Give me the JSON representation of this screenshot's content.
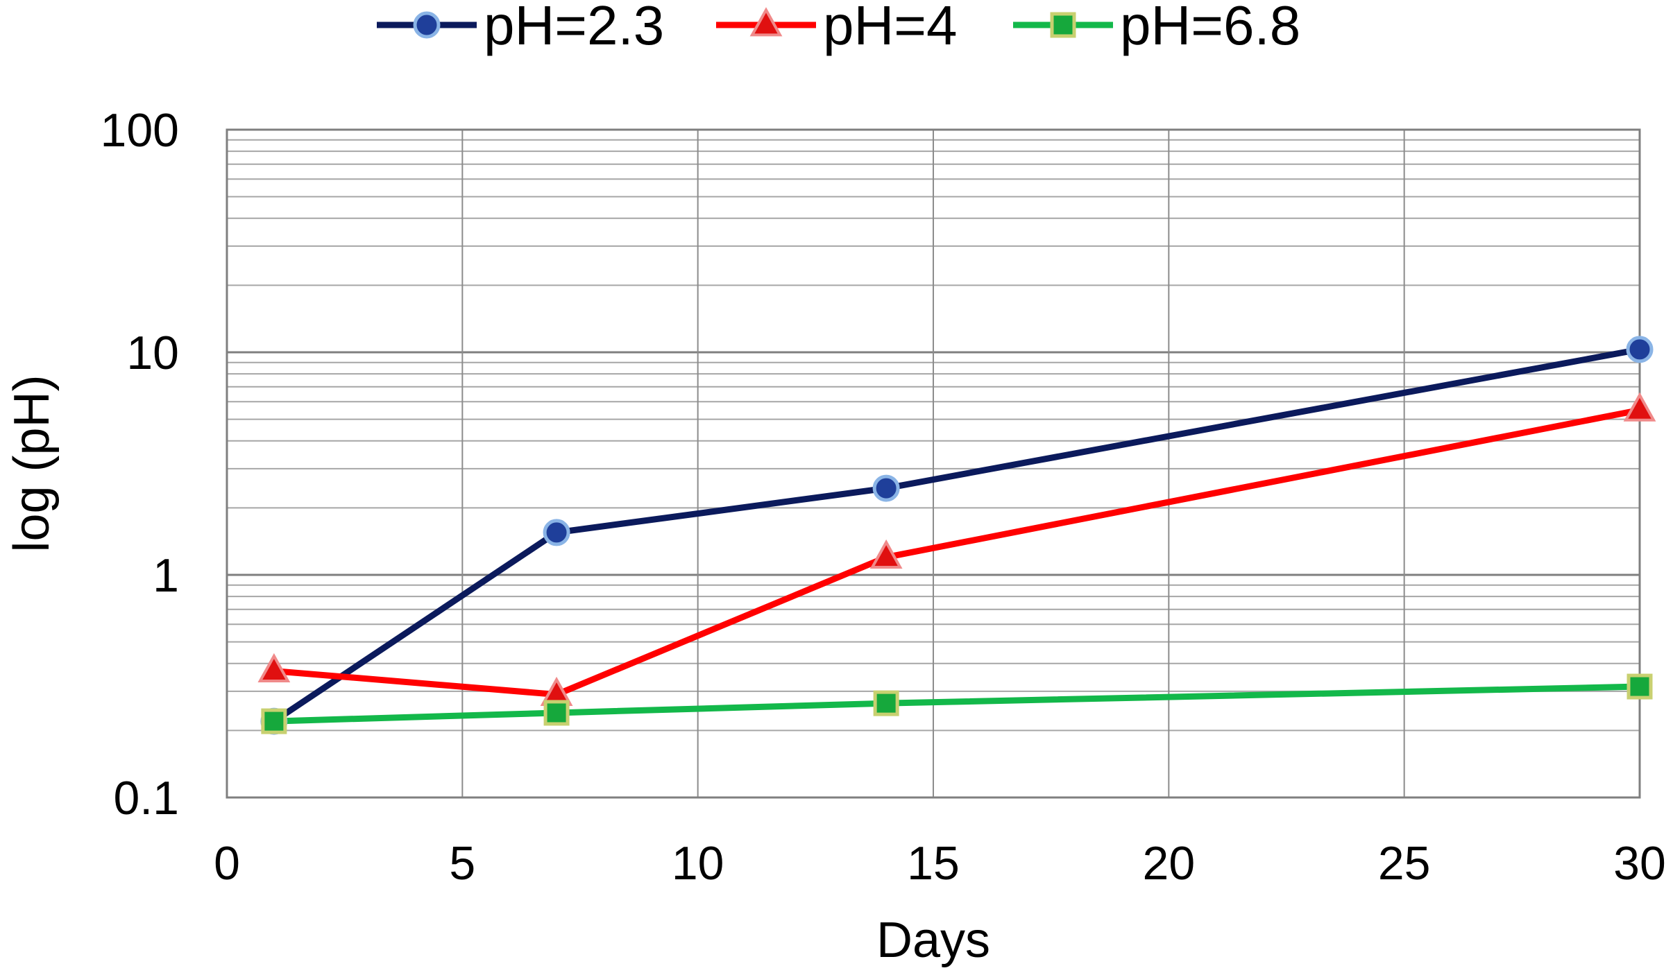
{
  "chart_data": {
    "type": "line",
    "title": "",
    "xlabel": "Days",
    "ylabel": "log (pH)",
    "xlim": [
      0,
      30
    ],
    "ylim": [
      0.1,
      100
    ],
    "yscale": "log",
    "x_ticks": [
      0,
      5,
      10,
      15,
      20,
      25,
      30
    ],
    "x_tick_labels": [
      "0",
      "5",
      "10",
      "15",
      "20",
      "25",
      "30"
    ],
    "y_ticks": [
      0.1,
      1,
      10,
      100
    ],
    "y_tick_labels": [
      "0.1",
      "1",
      "10",
      "100"
    ],
    "grid": true,
    "legend_position": "top",
    "series": [
      {
        "name": "pH=2.3",
        "color": "#0b1a5c",
        "marker": "circle",
        "marker_fill": "#1f3f9a",
        "marker_edge": "#8ab4e6",
        "x": [
          1,
          7,
          14,
          30
        ],
        "y": [
          0.22,
          1.55,
          2.45,
          10.3
        ]
      },
      {
        "name": "pH=4",
        "color": "#ff0000",
        "marker": "triangle",
        "marker_fill": "#e01010",
        "marker_edge": "#f08a8a",
        "x": [
          1,
          7,
          14,
          30
        ],
        "y": [
          0.37,
          0.29,
          1.2,
          5.5
        ]
      },
      {
        "name": "pH=6.8",
        "color": "#13b84a",
        "marker": "square",
        "marker_fill": "#16a83c",
        "marker_edge": "#c8d070",
        "x": [
          1,
          7,
          14,
          30
        ],
        "y": [
          0.22,
          0.24,
          0.265,
          0.315
        ]
      }
    ]
  }
}
